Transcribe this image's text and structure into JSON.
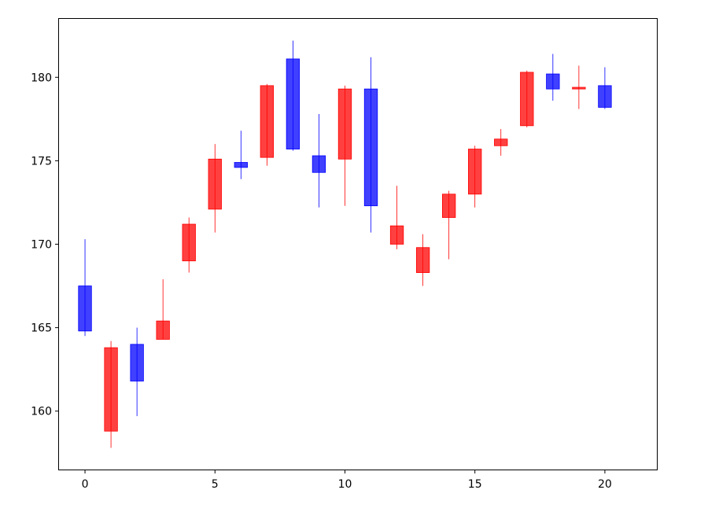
{
  "chart_data": {
    "type": "candlestick",
    "title": "",
    "xlabel": "",
    "ylabel": "",
    "xlim": [
      -1,
      22
    ],
    "ylim": [
      156.5,
      183.5
    ],
    "xticks": [
      0,
      5,
      10,
      15,
      20
    ],
    "xtick_labels": [
      "0",
      "5",
      "10",
      "15",
      "20"
    ],
    "yticks": [
      160,
      165,
      170,
      175,
      180
    ],
    "ytick_labels": [
      "160",
      "165",
      "170",
      "175",
      "180"
    ],
    "grid": false,
    "colors": {
      "up": "#ff0000",
      "down": "#0000ff"
    },
    "candles": [
      {
        "x": 0,
        "open": 167.5,
        "high": 170.3,
        "low": 164.5,
        "close": 164.8
      },
      {
        "x": 1,
        "open": 158.8,
        "high": 164.2,
        "low": 157.8,
        "close": 163.8
      },
      {
        "x": 2,
        "open": 164.0,
        "high": 165.0,
        "low": 159.7,
        "close": 161.8
      },
      {
        "x": 3,
        "open": 164.3,
        "high": 167.9,
        "low": 164.3,
        "close": 165.4
      },
      {
        "x": 4,
        "open": 169.0,
        "high": 171.6,
        "low": 168.3,
        "close": 171.2
      },
      {
        "x": 5,
        "open": 172.1,
        "high": 176.0,
        "low": 170.7,
        "close": 175.1
      },
      {
        "x": 6,
        "open": 174.9,
        "high": 176.8,
        "low": 173.9,
        "close": 174.6
      },
      {
        "x": 7,
        "open": 175.2,
        "high": 179.6,
        "low": 174.7,
        "close": 179.5
      },
      {
        "x": 8,
        "open": 181.1,
        "high": 182.2,
        "low": 175.6,
        "close": 175.7
      },
      {
        "x": 9,
        "open": 175.3,
        "high": 177.8,
        "low": 172.2,
        "close": 174.3
      },
      {
        "x": 10,
        "open": 175.1,
        "high": 179.5,
        "low": 172.3,
        "close": 179.3
      },
      {
        "x": 11,
        "open": 179.3,
        "high": 181.2,
        "low": 170.7,
        "close": 172.3
      },
      {
        "x": 12,
        "open": 170.0,
        "high": 173.5,
        "low": 169.7,
        "close": 171.1
      },
      {
        "x": 13,
        "open": 168.3,
        "high": 170.6,
        "low": 167.5,
        "close": 169.8
      },
      {
        "x": 14,
        "open": 171.6,
        "high": 173.2,
        "low": 169.1,
        "close": 173.0
      },
      {
        "x": 15,
        "open": 173.0,
        "high": 175.9,
        "low": 172.2,
        "close": 175.7
      },
      {
        "x": 16,
        "open": 175.9,
        "high": 176.9,
        "low": 175.3,
        "close": 176.3
      },
      {
        "x": 17,
        "open": 177.1,
        "high": 180.4,
        "low": 177.0,
        "close": 180.3
      },
      {
        "x": 18,
        "open": 180.2,
        "high": 181.4,
        "low": 178.6,
        "close": 179.3
      },
      {
        "x": 19,
        "open": 179.3,
        "high": 180.7,
        "low": 178.1,
        "close": 179.4
      },
      {
        "x": 20,
        "open": 179.5,
        "high": 180.6,
        "low": 178.1,
        "close": 178.2
      }
    ]
  }
}
